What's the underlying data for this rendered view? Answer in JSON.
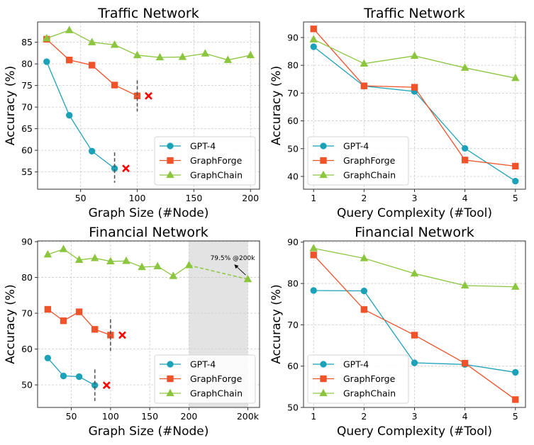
{
  "colors": {
    "gpt4": "#1ba1b8",
    "graphforge": "#f0522a",
    "graphchain": "#8cc63f",
    "fail_marker": "#ff0000",
    "cutoff_line": "#555555",
    "shade": "#e3e3e3",
    "grid": "#cccccc"
  },
  "chart_data": [
    {
      "id": "traffic-size",
      "type": "line",
      "title": "Traffic Network",
      "xlabel": "Graph Size (#Node)",
      "ylabel": "Accuracy (%)",
      "xlim": [
        12,
        208
      ],
      "ylim": [
        51,
        89.7
      ],
      "xticks": [
        50,
        100,
        150,
        200
      ],
      "xtick_labels": [
        "50",
        "100",
        "150",
        "200"
      ],
      "yticks": [
        55,
        60,
        65,
        70,
        75,
        80,
        85
      ],
      "ytick_labels": [
        "55",
        "60",
        "65",
        "70",
        "75",
        "80",
        "85"
      ],
      "grid": true,
      "legend_position": "lower-right",
      "series": [
        {
          "name": "GPT-4",
          "key": "gpt4",
          "marker": "circle",
          "x": [
            20,
            40,
            60,
            80
          ],
          "y": [
            80.5,
            68.1,
            59.8,
            55.8
          ]
        },
        {
          "name": "GraphForge",
          "key": "graphforge",
          "marker": "square",
          "x": [
            20,
            40,
            60,
            80,
            100
          ],
          "y": [
            85.7,
            80.9,
            79.7,
            75.1,
            72.6
          ]
        },
        {
          "name": "GraphChain",
          "key": "graphchain",
          "marker": "triangle",
          "x": [
            20,
            40,
            60,
            80,
            100,
            120,
            140,
            160,
            180,
            200
          ],
          "y": [
            85.9,
            87.8,
            85.0,
            84.4,
            82.0,
            81.5,
            81.6,
            82.4,
            80.9,
            82.0
          ]
        }
      ],
      "cutoffs": [
        {
          "series": "gpt4",
          "x": 80,
          "y_range": [
            52.5,
            59.5
          ],
          "fail_x": 90,
          "fail_y": 55.8
        },
        {
          "series": "graphforge",
          "x": 100,
          "y_range": [
            69,
            76.2
          ],
          "fail_x": 110,
          "fail_y": 72.6
        }
      ]
    },
    {
      "id": "traffic-complexity",
      "type": "line",
      "title": "Traffic Network",
      "xlabel": "Query Complexity (#Tool)",
      "ylabel": "Accuracy (%)",
      "xlim": [
        0.8,
        5.2
      ],
      "ylim": [
        35.4,
        95.6
      ],
      "xticks": [
        1,
        2,
        3,
        4,
        5
      ],
      "xtick_labels": [
        "1",
        "2",
        "3",
        "4",
        "5"
      ],
      "yticks": [
        40,
        50,
        60,
        70,
        80,
        90
      ],
      "ytick_labels": [
        "40",
        "50",
        "60",
        "70",
        "80",
        "90"
      ],
      "grid": true,
      "legend_position": "lower-left",
      "series": [
        {
          "name": "GPT-4",
          "key": "gpt4",
          "marker": "circle",
          "x": [
            1,
            2,
            3,
            4,
            5
          ],
          "y": [
            86.7,
            72.5,
            70.6,
            50.1,
            38.3
          ]
        },
        {
          "name": "GraphForge",
          "key": "graphforge",
          "marker": "square",
          "x": [
            1,
            2,
            3,
            4,
            5
          ],
          "y": [
            93.1,
            72.6,
            72.1,
            45.9,
            43.7
          ]
        },
        {
          "name": "GraphChain",
          "key": "graphchain",
          "marker": "triangle",
          "x": [
            1,
            2,
            3,
            4,
            5
          ],
          "y": [
            89.3,
            80.6,
            83.4,
            79.1,
            75.4
          ]
        }
      ]
    },
    {
      "id": "financial-size",
      "type": "line",
      "title": "Financial Network",
      "xlabel": "Graph Size (#Node)",
      "ylabel": "Accuracy (%)",
      "xlim": [
        7,
        290
      ],
      "ylim": [
        43.7,
        90.2
      ],
      "xticks": [
        50,
        100,
        150,
        200,
        275
      ],
      "xtick_labels": [
        "50",
        "100",
        "150",
        "200",
        "200k"
      ],
      "yticks": [
        50,
        60,
        70,
        80,
        90
      ],
      "ytick_labels": [
        "50",
        "60",
        "70",
        "80",
        "90"
      ],
      "grid": true,
      "legend_position": "lower-right",
      "shaded_x_range": [
        200,
        275
      ],
      "series": [
        {
          "name": "GPT-4",
          "key": "gpt4",
          "marker": "circle",
          "x": [
            20,
            40,
            60,
            80
          ],
          "y": [
            57.5,
            52.5,
            52.3,
            49.9
          ]
        },
        {
          "name": "GraphForge",
          "key": "graphforge",
          "marker": "square",
          "x": [
            20,
            40,
            60,
            80,
            100
          ],
          "y": [
            71.1,
            67.9,
            70.4,
            65.5,
            63.9
          ]
        },
        {
          "name": "GraphChain",
          "key": "graphchain",
          "marker": "triangle",
          "x": [
            20,
            40,
            60,
            80,
            100,
            120,
            140,
            160,
            180,
            200
          ],
          "y": [
            86.4,
            87.9,
            84.9,
            85.4,
            84.5,
            84.6,
            82.9,
            83.1,
            80.4,
            83.4
          ]
        }
      ],
      "extrapolation": {
        "series": "graphchain",
        "from": [
          200,
          83.4
        ],
        "to": [
          275,
          79.5
        ],
        "label": "79.5% @200k"
      },
      "cutoffs": [
        {
          "series": "gpt4",
          "x": 80,
          "y_range": [
            45.5,
            54.3
          ],
          "fail_x": 95,
          "fail_y": 49.9
        },
        {
          "series": "graphforge",
          "x": 100,
          "y_range": [
            59.5,
            68.3
          ],
          "fail_x": 115,
          "fail_y": 63.9
        }
      ]
    },
    {
      "id": "financial-complexity",
      "type": "line",
      "title": "Financial Network",
      "xlabel": "Query Complexity (#Tool)",
      "ylabel": "Accuracy (%)",
      "xlim": [
        0.8,
        5.2
      ],
      "ylim": [
        50,
        90.3
      ],
      "xticks": [
        1,
        2,
        3,
        4,
        5
      ],
      "xtick_labels": [
        "1",
        "2",
        "3",
        "4",
        "5"
      ],
      "yticks": [
        50,
        60,
        70,
        80,
        90
      ],
      "ytick_labels": [
        "50",
        "60",
        "70",
        "80",
        "90"
      ],
      "grid": true,
      "legend_position": "lower-left",
      "series": [
        {
          "name": "GPT-4",
          "key": "gpt4",
          "marker": "circle",
          "x": [
            1,
            2,
            3,
            4,
            5
          ],
          "y": [
            78.3,
            78.2,
            60.8,
            60.4,
            58.5
          ]
        },
        {
          "name": "GraphForge",
          "key": "graphforge",
          "marker": "square",
          "x": [
            1,
            2,
            3,
            4,
            5
          ],
          "y": [
            86.9,
            73.7,
            67.5,
            60.7,
            51.9
          ]
        },
        {
          "name": "GraphChain",
          "key": "graphchain",
          "marker": "triangle",
          "x": [
            1,
            2,
            3,
            4,
            5
          ],
          "y": [
            88.5,
            86.1,
            82.4,
            79.5,
            79.2
          ]
        }
      ]
    }
  ]
}
